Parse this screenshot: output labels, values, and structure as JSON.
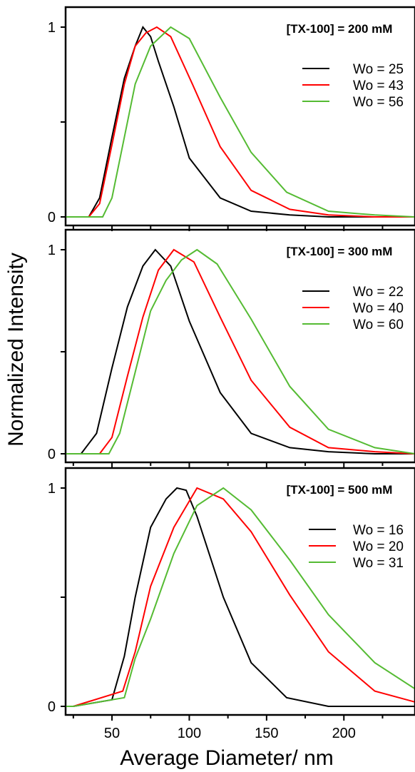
{
  "figure": {
    "ylabel": "Normalized Intensity",
    "xlabel": "Average Diameter/ nm"
  },
  "chart_data": [
    {
      "type": "line",
      "title": "[TX-100] = 200 mM",
      "xlim": [
        20,
        246
      ],
      "ylim": [
        0,
        1.02
      ],
      "yticks": [
        0,
        0.5,
        1
      ],
      "ytick_labels": [
        "0",
        "",
        "1"
      ],
      "xticks": [
        25,
        50,
        75,
        100,
        125,
        150,
        175,
        200,
        225
      ],
      "xtick_labels": [
        "",
        "",
        "",
        "",
        "",
        "",
        "",
        "",
        ""
      ],
      "legend_position": "right",
      "series": [
        {
          "name": "Wo = 25",
          "color": "#000000",
          "x": [
            20,
            35,
            42,
            50,
            58,
            65,
            70,
            75,
            80,
            90,
            100,
            120,
            140,
            165,
            190,
            220,
            246
          ],
          "y": [
            0,
            0,
            0.1,
            0.42,
            0.73,
            0.9,
            1.0,
            0.95,
            0.82,
            0.58,
            0.31,
            0.1,
            0.03,
            0.01,
            0,
            0,
            0
          ]
        },
        {
          "name": "Wo = 43",
          "color": "#ff0000",
          "x": [
            20,
            35,
            42,
            50,
            58,
            65,
            72,
            79,
            88,
            102,
            120,
            140,
            165,
            190,
            220,
            246
          ],
          "y": [
            0,
            0,
            0.07,
            0.38,
            0.7,
            0.9,
            0.97,
            1.0,
            0.95,
            0.7,
            0.37,
            0.14,
            0.04,
            0.01,
            0,
            0
          ]
        },
        {
          "name": "Wo = 56",
          "color": "#55bb33",
          "x": [
            20,
            35,
            44,
            50,
            58,
            65,
            75,
            88,
            100,
            120,
            140,
            163,
            190,
            220,
            246
          ],
          "y": [
            0,
            0,
            0,
            0.1,
            0.42,
            0.7,
            0.9,
            1.0,
            0.94,
            0.63,
            0.34,
            0.13,
            0.03,
            0.01,
            0
          ]
        }
      ]
    },
    {
      "type": "line",
      "title": "[TX-100] = 300 mM",
      "xlim": [
        20,
        246
      ],
      "ylim": [
        0,
        1.02
      ],
      "yticks": [
        0,
        0.5,
        1
      ],
      "ytick_labels": [
        "0",
        "",
        "1"
      ],
      "xticks": [
        25,
        50,
        75,
        100,
        125,
        150,
        175,
        200,
        225
      ],
      "xtick_labels": [
        "",
        "",
        "",
        "",
        "",
        "",
        "",
        "",
        ""
      ],
      "legend_position": "right",
      "series": [
        {
          "name": "Wo = 22",
          "color": "#000000",
          "x": [
            20,
            30,
            40,
            50,
            60,
            70,
            78,
            88,
            100,
            120,
            140,
            165,
            190,
            220,
            246
          ],
          "y": [
            0,
            0,
            0.1,
            0.42,
            0.72,
            0.92,
            1.0,
            0.92,
            0.65,
            0.3,
            0.1,
            0.03,
            0.01,
            0,
            0
          ]
        },
        {
          "name": "Wo = 40",
          "color": "#ff0000",
          "x": [
            20,
            42,
            50,
            60,
            70,
            80,
            90,
            103,
            120,
            140,
            165,
            190,
            220,
            246
          ],
          "y": [
            0,
            0,
            0.08,
            0.38,
            0.67,
            0.9,
            1.0,
            0.94,
            0.67,
            0.36,
            0.13,
            0.03,
            0.01,
            0
          ]
        },
        {
          "name": "Wo = 60",
          "color": "#55bb33",
          "x": [
            20,
            48,
            55,
            65,
            75,
            85,
            95,
            105,
            118,
            140,
            165,
            190,
            220,
            246
          ],
          "y": [
            0,
            0,
            0.1,
            0.4,
            0.7,
            0.85,
            0.95,
            1.0,
            0.93,
            0.66,
            0.33,
            0.12,
            0.03,
            0
          ]
        }
      ]
    },
    {
      "type": "line",
      "title": "[TX-100] = 500 mM",
      "xlim": [
        20,
        246
      ],
      "ylim": [
        0,
        1.02
      ],
      "yticks": [
        0,
        0.5,
        1
      ],
      "ytick_labels": [
        "0",
        "",
        "1"
      ],
      "xticks": [
        25,
        50,
        75,
        100,
        125,
        150,
        175,
        200,
        225
      ],
      "xtick_labels": [
        "",
        "50",
        "",
        "100",
        "",
        "150",
        "",
        "200",
        ""
      ],
      "legend_position": "right",
      "series": [
        {
          "name": "Wo = 16",
          "color": "#000000",
          "x": [
            20,
            25,
            50,
            58,
            65,
            75,
            85,
            92,
            98,
            105,
            122,
            140,
            163,
            190,
            246
          ],
          "y": [
            0,
            0,
            0.03,
            0.23,
            0.5,
            0.82,
            0.95,
            1.0,
            0.99,
            0.87,
            0.5,
            0.2,
            0.04,
            0,
            0
          ]
        },
        {
          "name": "Wo = 20",
          "color": "#ff0000",
          "x": [
            20,
            25,
            57,
            65,
            75,
            90,
            105,
            122,
            140,
            165,
            190,
            220,
            246
          ],
          "y": [
            0,
            0,
            0.07,
            0.25,
            0.55,
            0.82,
            1.0,
            0.95,
            0.8,
            0.51,
            0.25,
            0.07,
            0.02
          ]
        },
        {
          "name": "Wo = 31",
          "color": "#55bb33",
          "x": [
            20,
            25,
            58,
            65,
            75,
            90,
            105,
            122,
            140,
            165,
            190,
            220,
            246
          ],
          "y": [
            0,
            0,
            0.04,
            0.22,
            0.4,
            0.7,
            0.92,
            1.0,
            0.9,
            0.67,
            0.42,
            0.2,
            0.08
          ]
        }
      ]
    }
  ]
}
